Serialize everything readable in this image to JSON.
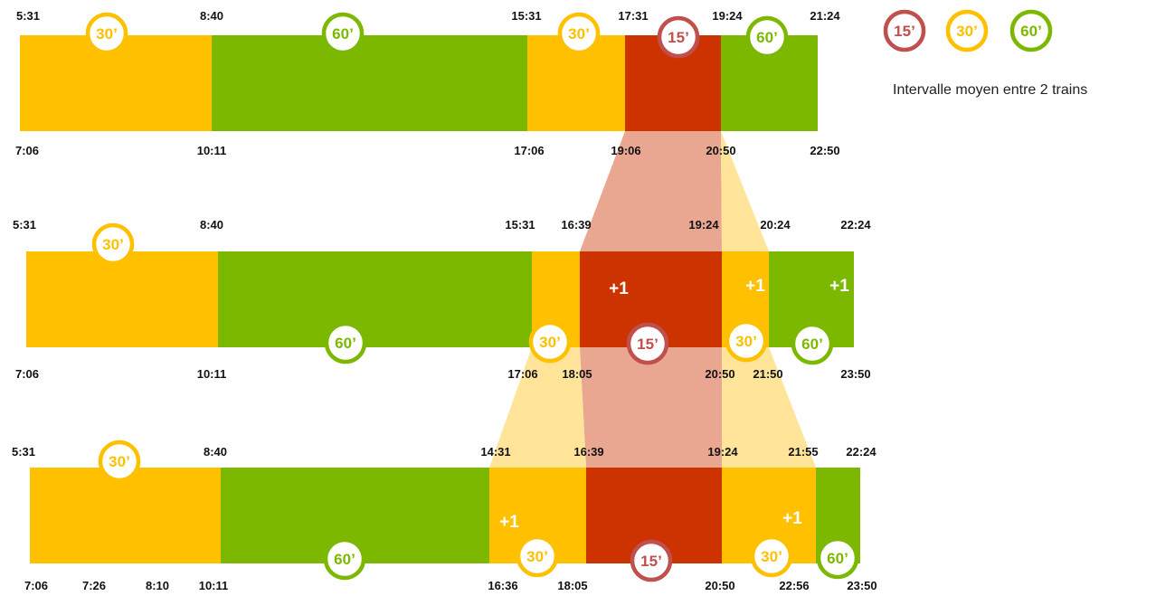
{
  "colors": {
    "c15": "#CC3300",
    "c30": "#FFC000",
    "c60": "#7CB800",
    "ring15": "#C0504D",
    "ring30": "#FFC000",
    "ring60": "#7CB800",
    "fan15": "#E9A792",
    "fan30": "#FFE49A"
  },
  "legend": {
    "items": [
      {
        "label": "15’",
        "kind": "c15"
      },
      {
        "label": "30’",
        "kind": "c30"
      },
      {
        "label": "60’",
        "kind": "c60"
      }
    ],
    "caption": "Intervalle moyen entre 2 trains"
  },
  "rows": [
    {
      "name": "row-1",
      "segments": [
        {
          "kind": "c30"
        },
        {
          "kind": "c60"
        },
        {
          "kind": "c30"
        },
        {
          "kind": "c15"
        },
        {
          "kind": "c60"
        }
      ],
      "top_times": [
        "5:31",
        "8:40",
        "15:31",
        "17:31",
        "19:24",
        "21:24"
      ],
      "bottom_times": [
        "7:06",
        "10:11",
        "17:06",
        "19:06",
        "20:50",
        "22:50"
      ],
      "badges": [
        "30’",
        "60’",
        "30’",
        "15’",
        "60’"
      ],
      "plus": []
    },
    {
      "name": "row-2",
      "segments": [
        {
          "kind": "c30"
        },
        {
          "kind": "c60"
        },
        {
          "kind": "c30"
        },
        {
          "kind": "c15"
        },
        {
          "kind": "c30"
        },
        {
          "kind": "c60"
        }
      ],
      "top_times": [
        "5:31",
        "8:40",
        "15:31",
        "16:39",
        "19:24",
        "20:24",
        "22:24"
      ],
      "bottom_times": [
        "7:06",
        "10:11",
        "17:06",
        "18:05",
        "20:50",
        "21:50",
        "23:50"
      ],
      "badges": [
        "30’",
        "60’",
        "30’",
        "15’",
        "30’",
        "60’"
      ],
      "plus": [
        "+1",
        "+1",
        "+1"
      ]
    },
    {
      "name": "row-3",
      "segments": [
        {
          "kind": "c30"
        },
        {
          "kind": "c60"
        },
        {
          "kind": "c30"
        },
        {
          "kind": "c15"
        },
        {
          "kind": "c30"
        },
        {
          "kind": "c60"
        }
      ],
      "top_times": [
        "5:31",
        "8:40",
        "14:31",
        "16:39",
        "19:24",
        "21:55",
        "22:24"
      ],
      "bottom_times": [
        "7:06",
        "7:26",
        "8:10",
        "10:11",
        "16:36",
        "18:05",
        "20:50",
        "22:56",
        "23:50"
      ],
      "badges": [
        "30’",
        "60’",
        "30’",
        "15’",
        "30’",
        "60’"
      ],
      "plus": [
        "+1",
        "+1"
      ]
    }
  ]
}
